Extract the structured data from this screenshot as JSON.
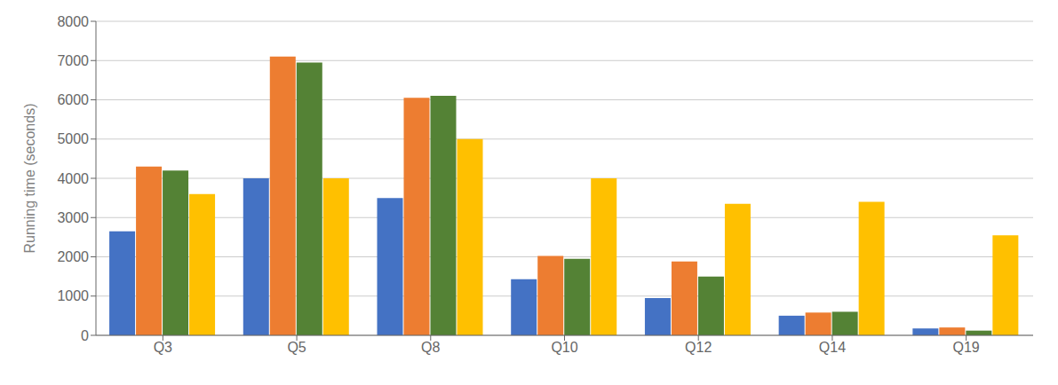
{
  "chart_data": {
    "type": "bar",
    "categories": [
      "Q3",
      "Q5",
      "Q8",
      "Q10",
      "Q12",
      "Q14",
      "Q19"
    ],
    "series": [
      {
        "color": "#4472C4",
        "values": [
          2650,
          4000,
          3500,
          1430,
          950,
          500,
          175
        ]
      },
      {
        "color": "#ED7D31",
        "values": [
          4300,
          7100,
          6050,
          2020,
          1880,
          580,
          200
        ]
      },
      {
        "color": "#548235",
        "values": [
          4200,
          6950,
          6100,
          1950,
          1500,
          600,
          120
        ]
      },
      {
        "color": "#FFC000",
        "values": [
          3600,
          4000,
          5000,
          4000,
          3350,
          3400,
          2550
        ]
      }
    ],
    "ylabel": "Running time (seconds)",
    "ylim": [
      0,
      8000
    ],
    "yticks": [
      0,
      1000,
      2000,
      3000,
      4000,
      5000,
      6000,
      7000,
      8000
    ],
    "grid": true
  }
}
